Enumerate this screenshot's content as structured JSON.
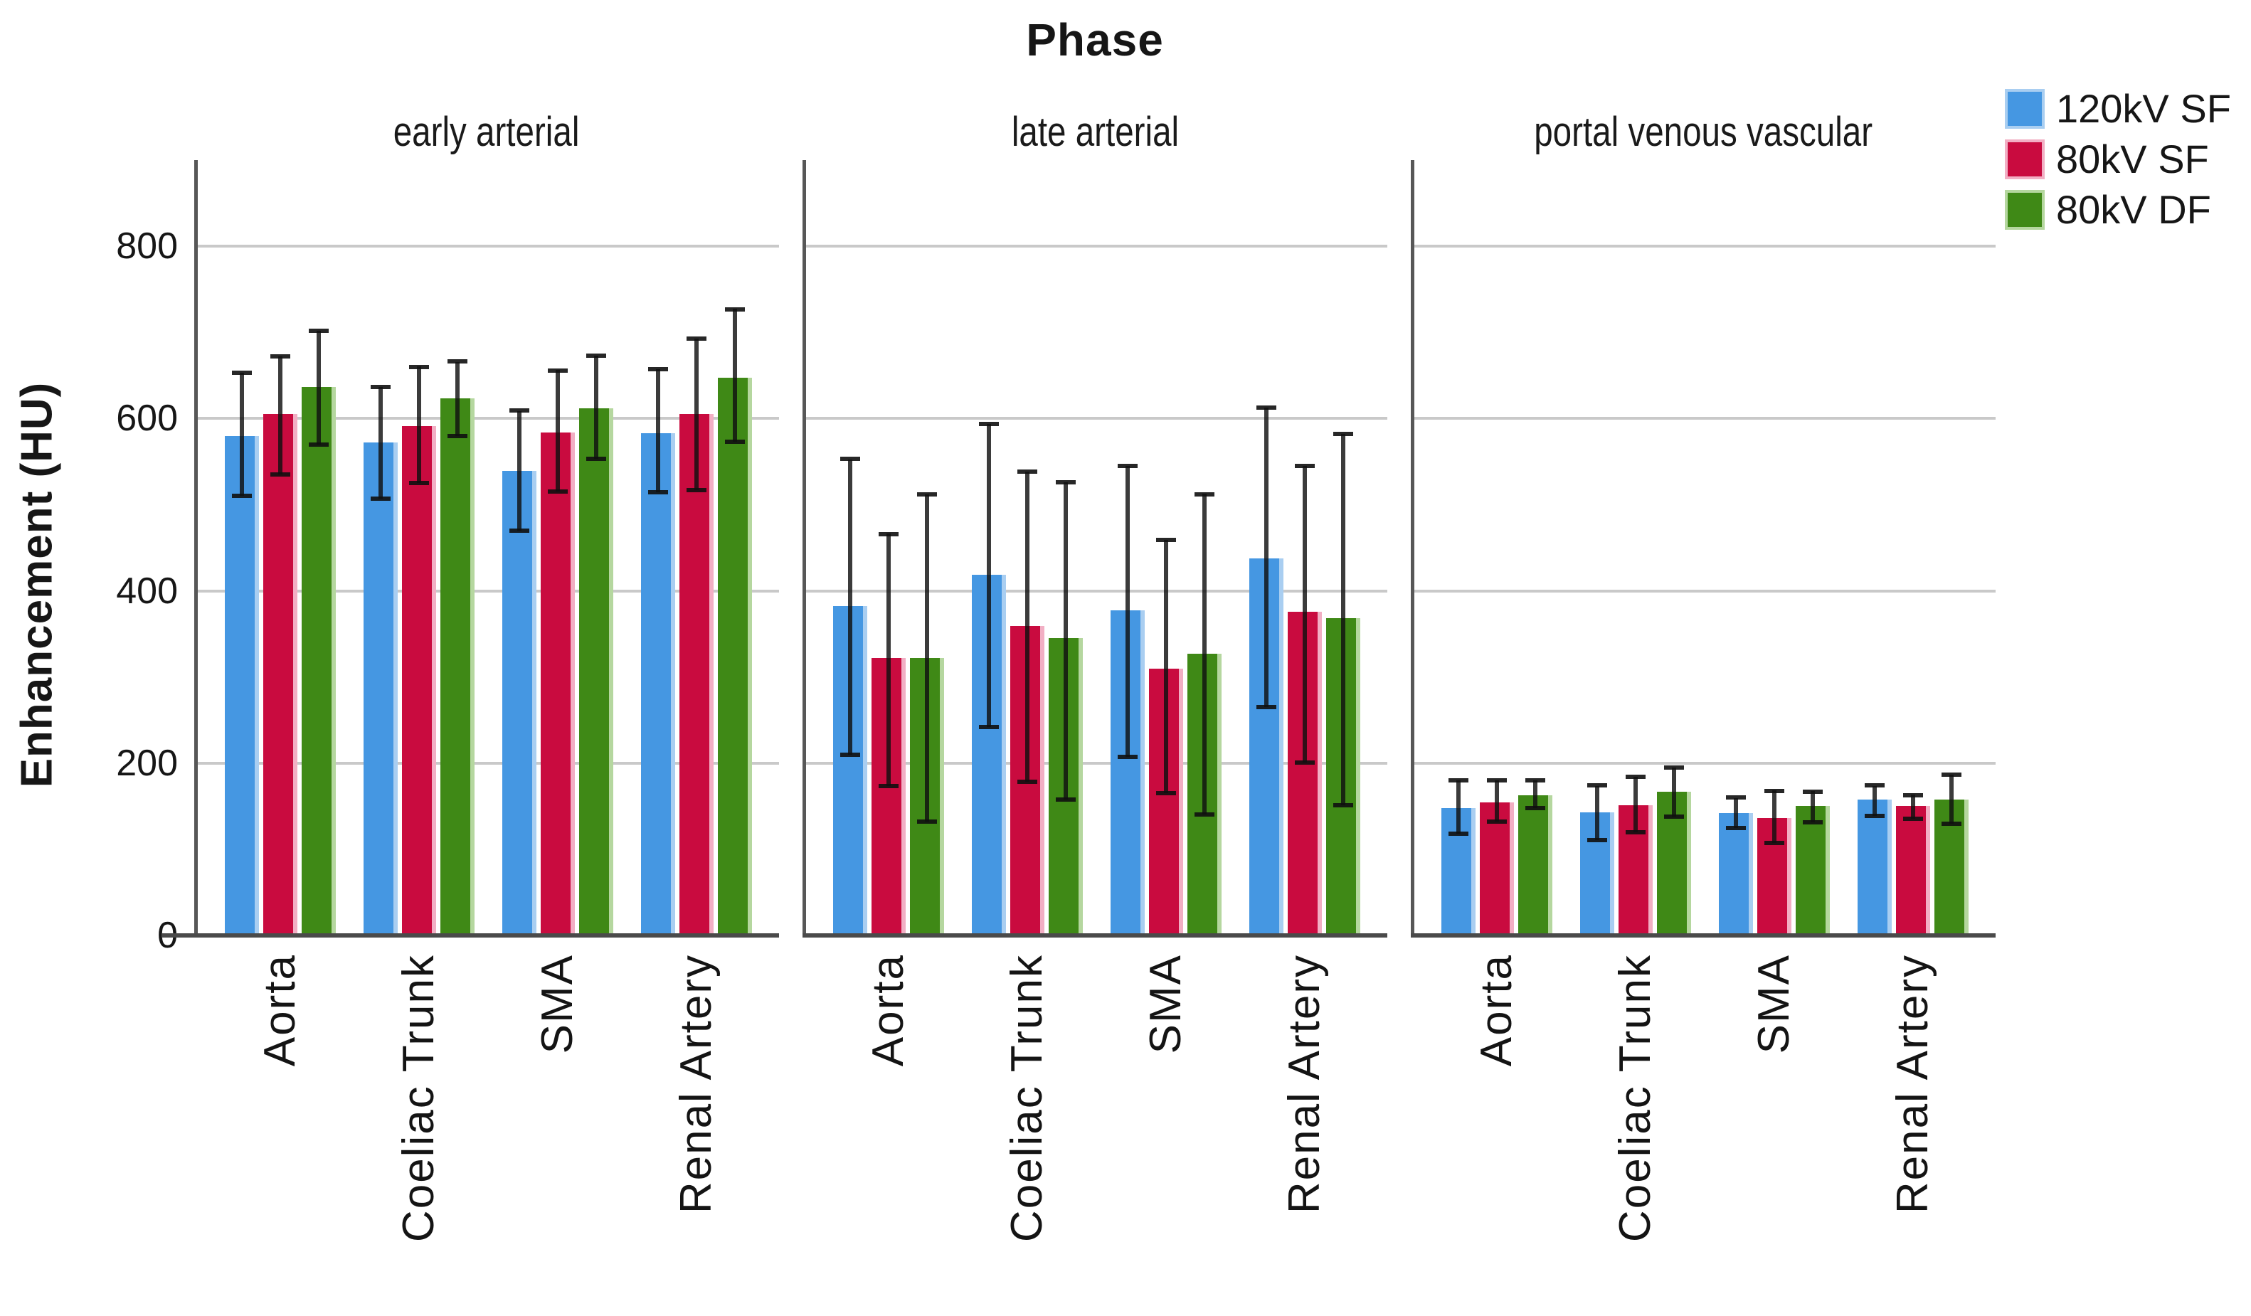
{
  "chart_data": {
    "type": "bar",
    "title": "Phase",
    "ylabel": "Enhancement (HU)",
    "ylim": [
      0,
      900
    ],
    "yticks": [
      0,
      200,
      400,
      600,
      800
    ],
    "grid": true,
    "legend_position": "top-right",
    "categories": [
      "Aorta",
      "Coeliac Trunk",
      "SMA",
      "Renal Artery"
    ],
    "series": [
      {
        "name": "120kV SF",
        "color": "#4597E2",
        "highlight": "#A9CEF1"
      },
      {
        "name": "80kV SF",
        "color": "#C90B3F",
        "highlight": "#F2AFC4"
      },
      {
        "name": "80kV DF",
        "color": "#3F8916",
        "highlight": "#B5D79F"
      }
    ],
    "error_bars": "mean ± SD, capped",
    "panels": [
      {
        "title": "early arterial",
        "series": [
          {
            "name": "120kV SF",
            "values": [
              580,
              572,
              539,
              583
            ],
            "err_high": [
              653,
              637,
              609,
              657
            ],
            "err_low": [
              510,
              507,
              470,
              514
            ]
          },
          {
            "name": "80kV SF",
            "values": [
              605,
              591,
              584,
              605
            ],
            "err_high": [
              672,
              660,
              656,
              693
            ],
            "err_low": [
              535,
              525,
              515,
              517
            ]
          },
          {
            "name": "80kV DF",
            "values": [
              637,
              623,
              612,
              647
            ],
            "err_high": [
              702,
              666,
              673,
              727
            ],
            "err_low": [
              570,
              580,
              553,
              573
            ]
          }
        ]
      },
      {
        "title": "late arterial",
        "series": [
          {
            "name": "120kV SF",
            "values": [
              382,
              419,
              377,
              438
            ],
            "err_high": [
              553,
              594,
              545,
              613
            ],
            "err_low": [
              210,
              242,
              207,
              265
            ]
          },
          {
            "name": "80kV SF",
            "values": [
              322,
              359,
              310,
              376
            ],
            "err_high": [
              466,
              538,
              459,
              545
            ],
            "err_low": [
              173,
              178,
              165,
              201
            ]
          },
          {
            "name": "80kV DF",
            "values": [
              322,
              345,
              327,
              368
            ],
            "err_high": [
              512,
              526,
              512,
              582
            ],
            "err_low": [
              132,
              158,
              140,
              151
            ]
          }
        ]
      },
      {
        "title": "portal venous vascular",
        "series": [
          {
            "name": "120kV SF",
            "values": [
              148,
              143,
              142,
              158
            ],
            "err_high": [
              180,
              174,
              160,
              174
            ],
            "err_low": [
              118,
              111,
              125,
              139
            ]
          },
          {
            "name": "80kV SF",
            "values": [
              154,
              151,
              136,
              150
            ],
            "err_high": [
              180,
              184,
              168,
              163
            ],
            "err_low": [
              132,
              120,
              107,
              135
            ]
          },
          {
            "name": "80kV DF",
            "values": [
              163,
              167,
              150,
              158
            ],
            "err_high": [
              180,
              195,
              167,
              187
            ],
            "err_low": [
              148,
              138,
              131,
              130
            ]
          }
        ]
      }
    ]
  }
}
